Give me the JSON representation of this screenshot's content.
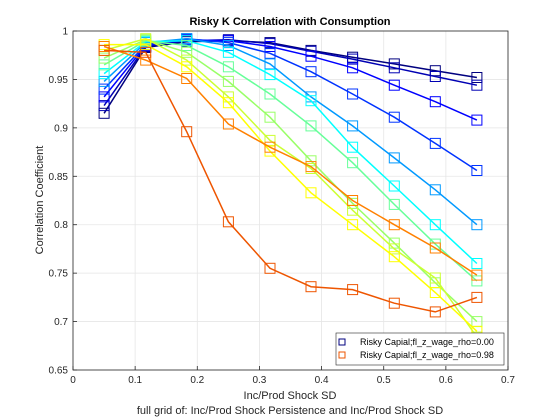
{
  "chart_data": {
    "type": "line",
    "title": "Risky K Correlation with Consumption",
    "xlabel": "Inc/Prod Shock SD",
    "ylabel": "Correlation Coefficient",
    "caption": "full grid of: Inc/Prod Shock Persistence and Inc/Prod Shock SD",
    "xlim": [
      0,
      0.7
    ],
    "ylim": [
      0.65,
      1
    ],
    "xticks": [
      "0",
      "0.1",
      "0.2",
      "0.3",
      "0.4",
      "0.5",
      "0.6",
      "0.7"
    ],
    "yticks": [
      "0.65",
      "0.7",
      "0.75",
      "0.8",
      "0.85",
      "0.9",
      "0.95",
      "1"
    ],
    "grid": true,
    "x": [
      0.05,
      0.117,
      0.183,
      0.25,
      0.317,
      0.383,
      0.45,
      0.517,
      0.583,
      0.65
    ],
    "series": [
      {
        "color": "#00007f",
        "values": [
          0.915,
          0.983,
          0.989,
          0.99,
          0.988,
          0.98,
          0.973,
          0.966,
          0.959,
          0.952
        ]
      },
      {
        "color": "#0000b3",
        "values": [
          0.923,
          0.984,
          0.99,
          0.991,
          0.987,
          0.979,
          0.971,
          0.962,
          0.953,
          0.944
        ]
      },
      {
        "color": "#0000ff",
        "values": [
          0.932,
          0.985,
          0.991,
          0.99,
          0.984,
          0.974,
          0.962,
          0.944,
          0.927,
          0.908
        ]
      },
      {
        "color": "#0033ff",
        "values": [
          0.94,
          0.986,
          0.992,
          0.988,
          0.977,
          0.958,
          0.935,
          0.911,
          0.884,
          0.856
        ]
      },
      {
        "color": "#0099ff",
        "values": [
          0.948,
          0.988,
          0.992,
          0.985,
          0.966,
          0.932,
          0.902,
          0.869,
          0.836,
          0.8
        ]
      },
      {
        "color": "#00ffff",
        "values": [
          0.956,
          0.989,
          0.99,
          0.978,
          0.955,
          0.928,
          0.88,
          0.84,
          0.8,
          0.76
        ]
      },
      {
        "color": "#66ff99",
        "values": [
          0.965,
          0.99,
          0.985,
          0.963,
          0.935,
          0.902,
          0.864,
          0.821,
          0.78,
          0.742
        ]
      },
      {
        "color": "#99ff66",
        "values": [
          0.972,
          0.991,
          0.978,
          0.948,
          0.911,
          0.866,
          0.822,
          0.781,
          0.74,
          0.7
        ]
      },
      {
        "color": "#ccff33",
        "values": [
          0.98,
          0.992,
          0.97,
          0.932,
          0.887,
          0.858,
          0.815,
          0.775,
          0.745,
          0.684
        ]
      },
      {
        "color": "#ffff00",
        "values": [
          0.986,
          0.986,
          0.963,
          0.926,
          0.876,
          0.833,
          0.8,
          0.767,
          0.73,
          0.69
        ]
      },
      {
        "color": "#ff8000",
        "values": [
          0.984,
          0.97,
          0.951,
          0.904,
          0.88,
          0.86,
          0.825,
          0.8,
          0.776,
          0.748
        ]
      },
      {
        "color": "#ee5500",
        "values": [
          0.98,
          0.978,
          0.896,
          0.803,
          0.755,
          0.736,
          0.733,
          0.719,
          0.71,
          0.725
        ]
      }
    ],
    "legend": {
      "placement": "bottom-right",
      "entries": [
        {
          "name": "Risky Capial;fl_z_wage_rho=0.00",
          "color": "#00007f"
        },
        {
          "name": "Risky Capial;fl_z_wage_rho=0.98",
          "color": "#ee5500"
        }
      ]
    }
  }
}
